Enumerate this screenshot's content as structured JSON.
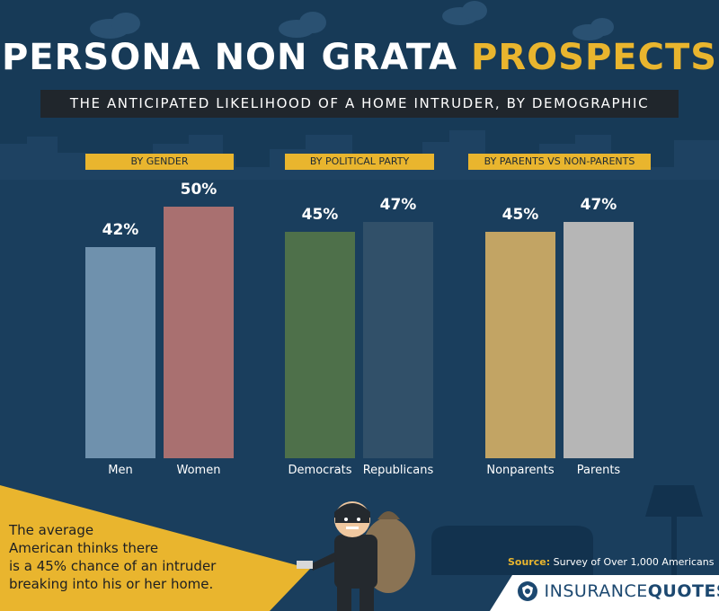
{
  "header": {
    "title_white": "PERSONA NON GRATA",
    "title_yellow": "PROSPECTS",
    "subtitle": "THE ANTICIPATED LIKELIHOOD OF A HOME INTRUDER, BY DEMOGRAPHIC"
  },
  "chart_data": {
    "type": "bar",
    "ylim": [
      0,
      100
    ],
    "groups": [
      {
        "label": "BY GENDER",
        "categories": [
          "Men",
          "Women"
        ],
        "values": [
          42,
          50
        ],
        "value_labels": [
          "42%",
          "50%"
        ],
        "colors": [
          "#6f91ad",
          "#a97070"
        ]
      },
      {
        "label": "BY POLITICAL PARTY",
        "categories": [
          "Democrats",
          "Republicans"
        ],
        "values": [
          45,
          47
        ],
        "value_labels": [
          "45%",
          "47%"
        ],
        "colors": [
          "#4e704a",
          "#315069"
        ]
      },
      {
        "label": "BY PARENTS VS NON-PARENTS",
        "categories": [
          "Nonparents",
          "Parents"
        ],
        "values": [
          45,
          47
        ],
        "value_labels": [
          "45%",
          "47%"
        ],
        "colors": [
          "#c2a464",
          "#b6b6b6"
        ]
      }
    ]
  },
  "note": {
    "lines": [
      "The average",
      "American thinks there",
      "is a 45% chance of an intruder",
      "breaking into his or her home."
    ]
  },
  "source": {
    "label": "Source:",
    "text": "Survey of Over 1,000 Americans"
  },
  "logo": {
    "part1": "INSURANCE",
    "part2": "QUOTES"
  },
  "colors": {
    "background": "#173a57",
    "accent": "#e9b52e",
    "skyline": "#1d4060"
  }
}
